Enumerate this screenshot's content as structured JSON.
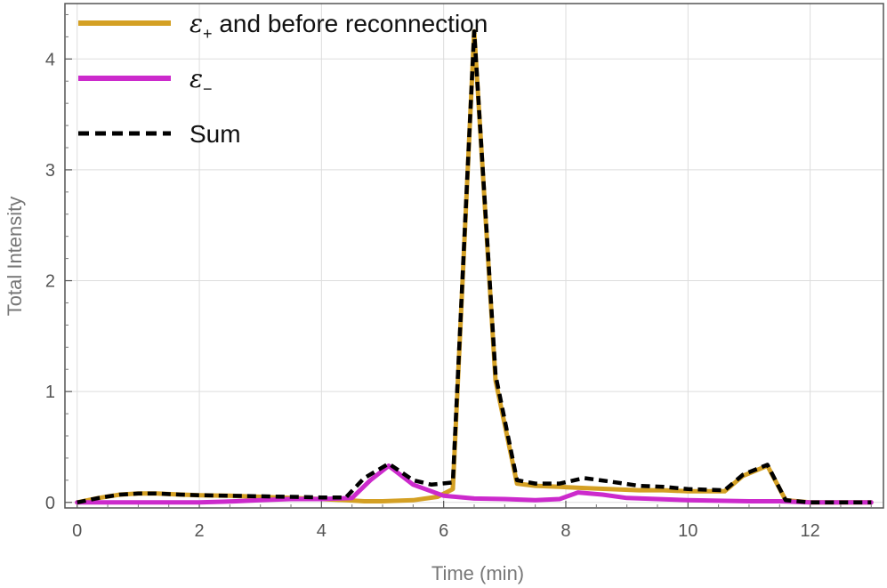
{
  "chart_data": {
    "type": "line",
    "xlabel": "Time (min)",
    "ylabel": "Total Intensity",
    "xlim": [
      -0.2,
      13.2
    ],
    "ylim": [
      -0.05,
      4.5
    ],
    "x_ticks": [
      0,
      2,
      4,
      6,
      8,
      10,
      12
    ],
    "x_tick_labels": [
      "0",
      "2",
      "4",
      "6",
      "8",
      "10",
      "12"
    ],
    "y_ticks": [
      0,
      1,
      2,
      3,
      4
    ],
    "y_tick_labels": [
      "0",
      "1",
      "2",
      "3",
      "4"
    ],
    "grid": true,
    "legend_position": "top-left",
    "series": [
      {
        "name": "ε+ and before reconnection",
        "legend_symbol": "ε",
        "legend_subscript": "+",
        "legend_suffix": " and before reconnection",
        "color": "#D4A024",
        "style": "solid",
        "x": [
          0,
          0.35,
          0.7,
          1.0,
          1.3,
          1.7,
          2.0,
          2.5,
          3.0,
          3.5,
          4.0,
          4.4,
          4.7,
          5.0,
          5.5,
          5.9,
          6.15,
          6.5,
          6.85,
          7.2,
          7.5,
          7.9,
          8.3,
          8.7,
          9.2,
          9.6,
          10.0,
          10.6,
          10.9,
          11.3,
          11.6,
          12.0,
          13.0
        ],
        "y": [
          0.0,
          0.04,
          0.07,
          0.08,
          0.08,
          0.07,
          0.065,
          0.06,
          0.05,
          0.04,
          0.03,
          0.02,
          0.01,
          0.01,
          0.02,
          0.05,
          0.12,
          4.25,
          1.1,
          0.17,
          0.15,
          0.14,
          0.13,
          0.12,
          0.11,
          0.11,
          0.1,
          0.1,
          0.24,
          0.33,
          0.02,
          0.0,
          0.0
        ]
      },
      {
        "name": "ε−",
        "legend_symbol": "ε",
        "legend_subscript": "−",
        "legend_suffix": "",
        "color": "#CC2ACC",
        "style": "solid",
        "x": [
          0,
          1.0,
          2.0,
          2.6,
          3.0,
          3.5,
          4.0,
          4.5,
          4.8,
          5.1,
          5.5,
          6.0,
          6.5,
          7.0,
          7.5,
          7.9,
          8.2,
          8.6,
          9.0,
          9.5,
          10.0,
          10.5,
          11.0,
          11.5,
          12.0,
          13.0
        ],
        "y": [
          0.0,
          0.0,
          0.0,
          0.01,
          0.02,
          0.03,
          0.03,
          0.04,
          0.2,
          0.33,
          0.16,
          0.06,
          0.035,
          0.03,
          0.02,
          0.03,
          0.09,
          0.07,
          0.04,
          0.03,
          0.02,
          0.015,
          0.01,
          0.01,
          0.0,
          0.0
        ]
      },
      {
        "name": "Sum",
        "legend_symbol": "",
        "legend_subscript": "",
        "legend_suffix": "Sum",
        "color": "#000000",
        "style": "dashed",
        "x": [
          0,
          0.35,
          0.7,
          1.0,
          1.3,
          1.7,
          2.0,
          2.5,
          3.0,
          3.5,
          4.0,
          4.4,
          4.7,
          5.1,
          5.5,
          5.8,
          6.15,
          6.5,
          6.85,
          7.2,
          7.5,
          7.9,
          8.3,
          8.7,
          9.2,
          9.6,
          10.0,
          10.6,
          10.9,
          11.3,
          11.6,
          12.0,
          13.0
        ],
        "y": [
          0.0,
          0.04,
          0.07,
          0.08,
          0.08,
          0.07,
          0.065,
          0.06,
          0.055,
          0.05,
          0.045,
          0.045,
          0.22,
          0.35,
          0.2,
          0.16,
          0.18,
          4.25,
          1.15,
          0.2,
          0.17,
          0.17,
          0.22,
          0.19,
          0.15,
          0.14,
          0.12,
          0.11,
          0.25,
          0.34,
          0.02,
          0.0,
          0.0
        ]
      }
    ]
  }
}
